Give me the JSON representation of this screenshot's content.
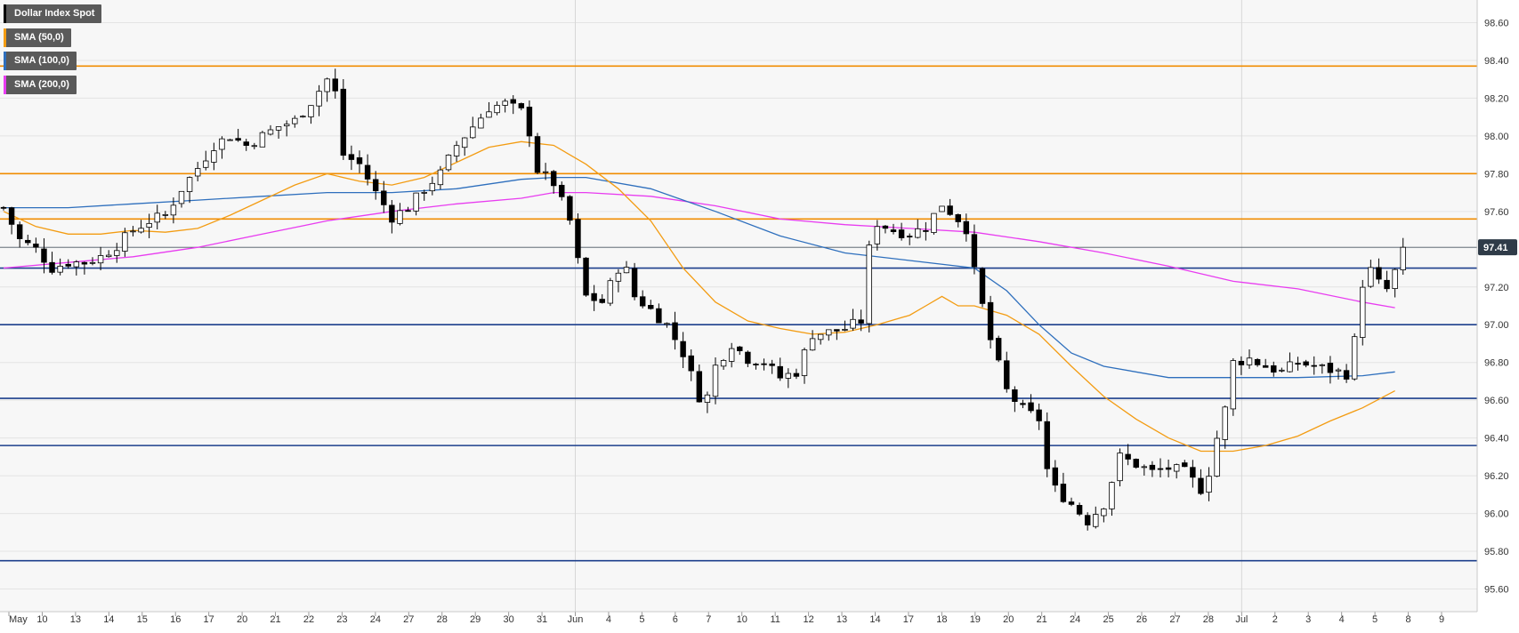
{
  "colors": {
    "background": "#ffffff",
    "plot_background": "#f7f7f7",
    "grid": "#e4e4e4",
    "axis_text": "#333333",
    "candle": "#000000",
    "sma50": "#f39c12",
    "sma100": "#2e6fbd",
    "sma200": "#e83cf0",
    "support": "#1c3f8c",
    "resistance": "#f08c00",
    "last_price_bg": "#2f3b48"
  },
  "legend": [
    {
      "label": "Dollar Index Spot",
      "color": "#000000"
    },
    {
      "label": "SMA (50,0)",
      "color": "#f39c12"
    },
    {
      "label": "SMA (100,0)",
      "color": "#2e6fbd"
    },
    {
      "label": "SMA (200,0)",
      "color": "#e83cf0"
    }
  ],
  "last_price_label": "97.41",
  "chart_data": {
    "type": "candlestick",
    "title": "",
    "xlabel": "",
    "ylabel": "",
    "ylim": [
      95.48,
      98.72
    ],
    "y_ticks": [
      "98.60",
      "98.40",
      "98.20",
      "98.00",
      "97.80",
      "97.60",
      "97.41",
      "97.20",
      "97.00",
      "96.80",
      "96.60",
      "96.40",
      "96.20",
      "96.00",
      "95.80",
      "95.60"
    ],
    "x_ticks": [
      "May",
      "10",
      "13",
      "14",
      "15",
      "16",
      "17",
      "20",
      "21",
      "22",
      "23",
      "24",
      "27",
      "28",
      "29",
      "30",
      "31",
      "Jun",
      "4",
      "5",
      "6",
      "7",
      "10",
      "11",
      "12",
      "13",
      "14",
      "17",
      "18",
      "19",
      "20",
      "21",
      "24",
      "25",
      "26",
      "27",
      "28",
      "Jul",
      "2",
      "3",
      "4",
      "5",
      "8",
      "9"
    ],
    "major_tick_labels": [
      "May",
      "Jun",
      "Jul"
    ],
    "last_price": 97.41,
    "horizontal_levels": [
      {
        "value": 98.37,
        "kind": "resistance"
      },
      {
        "value": 97.8,
        "kind": "resistance"
      },
      {
        "value": 97.56,
        "kind": "resistance"
      },
      {
        "value": 97.3,
        "kind": "support"
      },
      {
        "value": 97.0,
        "kind": "support"
      },
      {
        "value": 96.61,
        "kind": "support"
      },
      {
        "value": 96.36,
        "kind": "support"
      },
      {
        "value": 95.75,
        "kind": "support"
      }
    ],
    "close_path": [
      [
        0,
        97.62
      ],
      [
        1,
        97.45
      ],
      [
        2,
        97.4
      ],
      [
        3,
        97.3
      ],
      [
        4,
        97.33
      ],
      [
        5,
        97.33
      ],
      [
        6,
        97.36
      ],
      [
        7,
        97.42
      ],
      [
        8,
        97.5
      ],
      [
        9,
        97.55
      ],
      [
        10,
        97.58
      ],
      [
        11,
        97.72
      ],
      [
        12,
        97.83
      ],
      [
        13,
        97.95
      ],
      [
        14,
        98.0
      ],
      [
        15,
        97.95
      ],
      [
        16,
        98.0
      ],
      [
        17,
        98.05
      ],
      [
        18,
        98.08
      ],
      [
        19,
        98.18
      ],
      [
        20,
        98.3
      ],
      [
        20.7,
        98.2
      ],
      [
        21,
        97.9
      ],
      [
        22,
        97.85
      ],
      [
        23,
        97.7
      ],
      [
        24,
        97.57
      ],
      [
        25,
        97.62
      ],
      [
        26,
        97.72
      ],
      [
        27,
        97.8
      ],
      [
        28,
        97.95
      ],
      [
        29,
        98.05
      ],
      [
        30,
        98.15
      ],
      [
        31,
        98.17
      ],
      [
        32,
        98.13
      ],
      [
        32.6,
        98.0
      ],
      [
        33,
        97.82
      ],
      [
        34,
        97.75
      ],
      [
        35,
        97.55
      ],
      [
        35.7,
        97.25
      ],
      [
        36,
        97.15
      ],
      [
        37,
        97.12
      ],
      [
        38,
        97.3
      ],
      [
        38.7,
        97.28
      ],
      [
        39,
        97.15
      ],
      [
        40,
        97.08
      ],
      [
        41,
        97.0
      ],
      [
        42,
        96.85
      ],
      [
        43,
        96.62
      ],
      [
        43.7,
        96.62
      ],
      [
        44,
        96.78
      ],
      [
        45,
        96.9
      ],
      [
        46,
        96.82
      ],
      [
        47,
        96.8
      ],
      [
        48,
        96.72
      ],
      [
        49,
        96.75
      ],
      [
        50,
        96.95
      ],
      [
        51,
        96.96
      ],
      [
        52,
        96.98
      ],
      [
        53,
        97.02
      ],
      [
        53.5,
        97.4
      ],
      [
        54,
        97.54
      ],
      [
        55,
        97.5
      ],
      [
        56,
        97.48
      ],
      [
        57,
        97.52
      ],
      [
        58,
        97.64
      ],
      [
        59,
        97.56
      ],
      [
        59.6,
        97.5
      ],
      [
        60,
        97.28
      ],
      [
        61,
        96.92
      ],
      [
        62,
        96.65
      ],
      [
        63,
        96.55
      ],
      [
        64,
        96.5
      ],
      [
        64.6,
        96.18
      ],
      [
        65,
        96.13
      ],
      [
        66,
        96.05
      ],
      [
        67,
        95.96
      ],
      [
        68,
        96.05
      ],
      [
        69,
        96.3
      ],
      [
        70,
        96.26
      ],
      [
        71,
        96.22
      ],
      [
        72,
        96.24
      ],
      [
        73,
        96.22
      ],
      [
        74,
        96.13
      ],
      [
        74.5,
        96.22
      ],
      [
        75,
        96.4
      ],
      [
        75.5,
        96.55
      ],
      [
        76,
        96.8
      ],
      [
        77,
        96.82
      ],
      [
        78,
        96.78
      ],
      [
        79,
        96.75
      ],
      [
        80,
        96.8
      ],
      [
        81,
        96.78
      ],
      [
        82,
        96.76
      ],
      [
        83,
        96.74
      ],
      [
        83.6,
        96.95
      ],
      [
        84,
        97.22
      ],
      [
        84.6,
        97.3
      ],
      [
        85,
        97.22
      ],
      [
        85.6,
        97.18
      ],
      [
        86,
        97.28
      ],
      [
        86.5,
        97.41
      ]
    ],
    "sma50": [
      [
        0,
        97.6
      ],
      [
        2,
        97.52
      ],
      [
        4,
        97.48
      ],
      [
        6,
        97.48
      ],
      [
        8,
        97.5
      ],
      [
        10,
        97.49
      ],
      [
        12,
        97.51
      ],
      [
        14,
        97.58
      ],
      [
        16,
        97.66
      ],
      [
        18,
        97.74
      ],
      [
        20,
        97.8
      ],
      [
        22,
        97.76
      ],
      [
        24,
        97.74
      ],
      [
        26,
        97.78
      ],
      [
        28,
        97.86
      ],
      [
        30,
        97.94
      ],
      [
        32,
        97.97
      ],
      [
        34,
        97.95
      ],
      [
        36,
        97.85
      ],
      [
        38,
        97.72
      ],
      [
        40,
        97.55
      ],
      [
        42,
        97.3
      ],
      [
        44,
        97.12
      ],
      [
        46,
        97.02
      ],
      [
        48,
        96.98
      ],
      [
        50,
        96.95
      ],
      [
        52,
        96.96
      ],
      [
        54,
        97.0
      ],
      [
        56,
        97.05
      ],
      [
        57,
        97.1
      ],
      [
        58,
        97.15
      ],
      [
        59,
        97.1
      ],
      [
        60,
        97.1
      ],
      [
        62,
        97.05
      ],
      [
        64,
        96.95
      ],
      [
        66,
        96.78
      ],
      [
        68,
        96.62
      ],
      [
        70,
        96.5
      ],
      [
        72,
        96.4
      ],
      [
        74,
        96.33
      ],
      [
        76,
        96.33
      ],
      [
        78,
        96.36
      ],
      [
        80,
        96.41
      ],
      [
        82,
        96.49
      ],
      [
        84,
        96.56
      ],
      [
        86,
        96.65
      ]
    ],
    "sma100": [
      [
        0,
        97.62
      ],
      [
        4,
        97.62
      ],
      [
        8,
        97.64
      ],
      [
        12,
        97.66
      ],
      [
        16,
        97.68
      ],
      [
        20,
        97.7
      ],
      [
        24,
        97.7
      ],
      [
        28,
        97.72
      ],
      [
        32,
        97.77
      ],
      [
        34,
        97.78
      ],
      [
        36,
        97.78
      ],
      [
        40,
        97.72
      ],
      [
        44,
        97.6
      ],
      [
        48,
        97.47
      ],
      [
        52,
        97.38
      ],
      [
        56,
        97.34
      ],
      [
        60,
        97.3
      ],
      [
        62,
        97.18
      ],
      [
        64,
        97.0
      ],
      [
        66,
        96.85
      ],
      [
        68,
        96.78
      ],
      [
        72,
        96.72
      ],
      [
        76,
        96.72
      ],
      [
        80,
        96.72
      ],
      [
        84,
        96.73
      ],
      [
        86,
        96.75
      ]
    ],
    "sma200": [
      [
        0,
        97.3
      ],
      [
        4,
        97.33
      ],
      [
        8,
        97.36
      ],
      [
        12,
        97.41
      ],
      [
        16,
        97.48
      ],
      [
        20,
        97.55
      ],
      [
        24,
        97.6
      ],
      [
        28,
        97.64
      ],
      [
        32,
        97.67
      ],
      [
        34,
        97.7
      ],
      [
        36,
        97.7
      ],
      [
        40,
        97.68
      ],
      [
        44,
        97.63
      ],
      [
        48,
        97.56
      ],
      [
        52,
        97.53
      ],
      [
        56,
        97.51
      ],
      [
        60,
        97.49
      ],
      [
        64,
        97.44
      ],
      [
        68,
        97.38
      ],
      [
        72,
        97.31
      ],
      [
        76,
        97.23
      ],
      [
        80,
        97.19
      ],
      [
        84,
        97.12
      ],
      [
        86,
        97.09
      ]
    ]
  }
}
